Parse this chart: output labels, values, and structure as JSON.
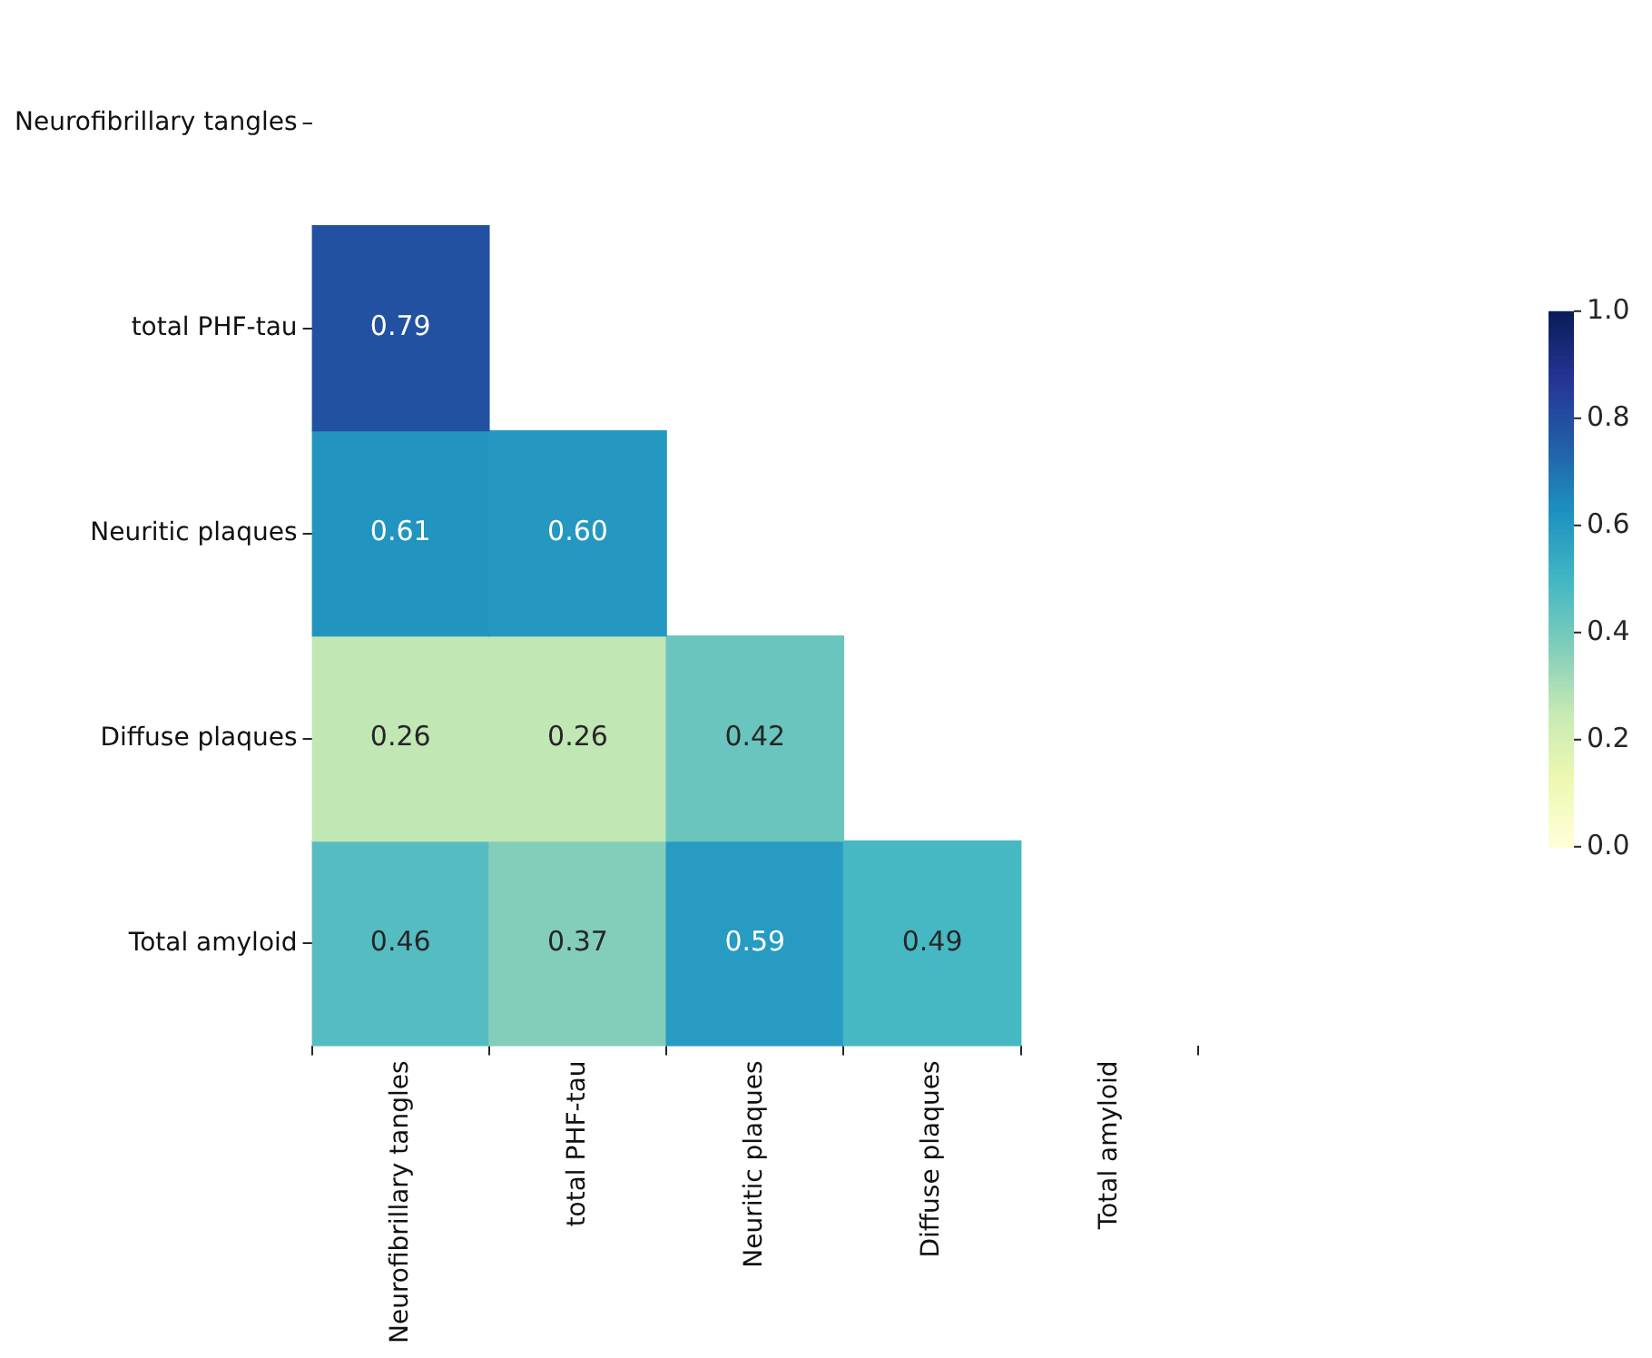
{
  "chart_data": {
    "type": "heatmap",
    "categories": [
      "Neurofibrillary tangles",
      "total PHF-tau",
      "Neuritic plaques",
      "Diffuse plaques",
      "Total amyloid"
    ],
    "y_categories": [
      "Neurofibrillary tangles",
      "total PHF-tau",
      "Neuritic plaques",
      "Diffuse plaques",
      "Total amyloid"
    ],
    "cells": [
      [
        null,
        null,
        null,
        null,
        null
      ],
      [
        0.79,
        null,
        null,
        null,
        null
      ],
      [
        0.61,
        0.6,
        null,
        null,
        null
      ],
      [
        0.26,
        0.26,
        0.42,
        null,
        null
      ],
      [
        0.46,
        0.37,
        0.59,
        0.49,
        null
      ]
    ],
    "cell_labels": [
      [
        null,
        null,
        null,
        null,
        null
      ],
      [
        "0.79",
        null,
        null,
        null,
        null
      ],
      [
        "0.61",
        "0.60",
        null,
        null,
        null
      ],
      [
        "0.26",
        "0.26",
        "0.42",
        null,
        null
      ],
      [
        "0.46",
        "0.37",
        "0.59",
        "0.49",
        null
      ]
    ],
    "clim": [
      0.0,
      1.0
    ],
    "cticks": [
      {
        "value": 0,
        "label": "0.0"
      },
      {
        "value": 0.2,
        "label": "0.2"
      },
      {
        "value": 0.4,
        "label": "0.4"
      },
      {
        "value": 0.6,
        "label": "0.6"
      },
      {
        "value": 0.8,
        "label": "0.8"
      },
      {
        "value": 1,
        "label": "1.0"
      }
    ],
    "data_labels": true
  }
}
